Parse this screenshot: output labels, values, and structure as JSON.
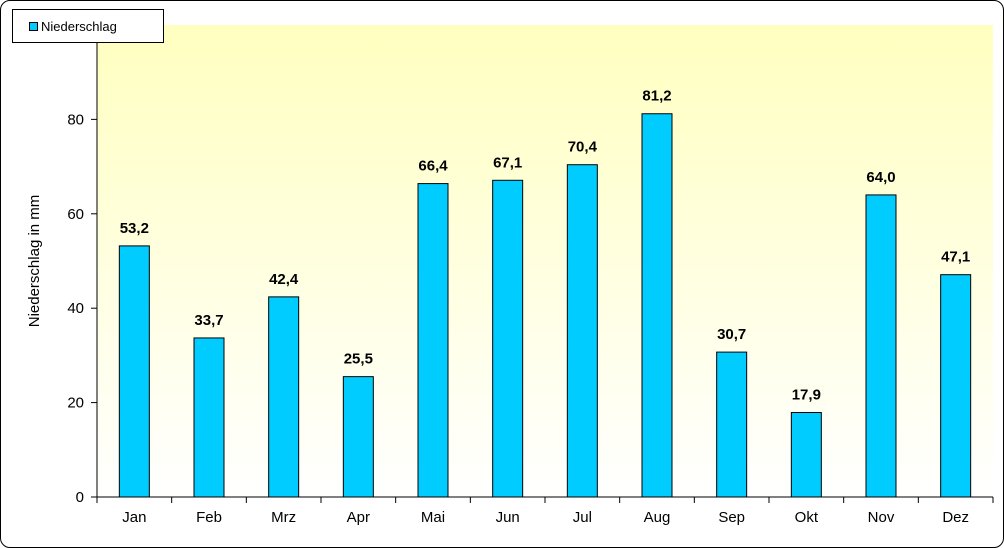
{
  "chart_data": {
    "type": "bar",
    "categories": [
      "Jan",
      "Feb",
      "Mrz",
      "Apr",
      "Mai",
      "Jun",
      "Jul",
      "Aug",
      "Sep",
      "Okt",
      "Nov",
      "Dez"
    ],
    "series": [
      {
        "name": "Niederschlag",
        "values": [
          53.2,
          33.7,
          42.4,
          25.5,
          66.4,
          67.1,
          70.4,
          81.2,
          30.7,
          17.9,
          64.0,
          47.1
        ],
        "labels": [
          "53,2",
          "33,7",
          "42,4",
          "25,5",
          "66,4",
          "67,1",
          "70,4",
          "81,2",
          "30,7",
          "17,9",
          "64,0",
          "47,1"
        ]
      }
    ],
    "title": "",
    "xlabel": "",
    "ylabel": "Niederschlag in mm",
    "ylim": [
      0,
      100
    ],
    "yticks": [
      0,
      20,
      40,
      60,
      80
    ],
    "grid": false,
    "legend_position": "top-left",
    "colors": {
      "bar_fill": "#00CCFF",
      "plot_top": "#FFFFC0",
      "plot_bottom": "#FFFFFF"
    }
  }
}
